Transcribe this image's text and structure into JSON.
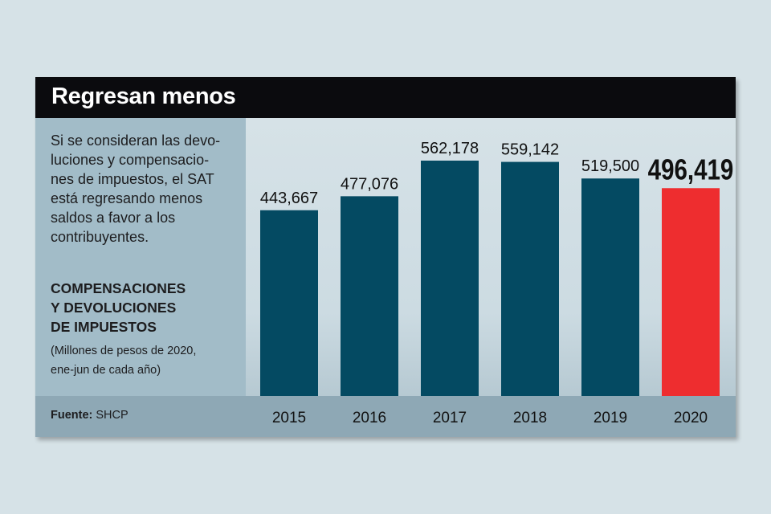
{
  "title": "Regresan menos",
  "description_lines": [
    "Si se consideran las devo-",
    "luciones y compensacio-",
    "nes de impuestos, el SAT",
    "está regresando menos",
    "saldos a favor a los",
    "contribuyentes."
  ],
  "measure_title_lines": [
    "COMPENSACIONES",
    "Y DEVOLUCIONES",
    "DE IMPUESTOS"
  ],
  "measure_note_lines": [
    "(Millones de pesos de 2020,",
    "ene-jun de cada año)"
  ],
  "source": {
    "label": "Fuente:",
    "value": "SHCP"
  },
  "colors": {
    "bar": "#044a62",
    "highlight": "#ee2d2f",
    "label": "#111111"
  },
  "chart_data": {
    "type": "bar",
    "title": "COMPENSACIONES Y DEVOLUCIONES DE IMPUESTOS",
    "ylabel": "Millones de pesos de 2020, ene-jun de cada año",
    "xlabel": "",
    "categories": [
      "2015",
      "2016",
      "2017",
      "2018",
      "2019",
      "2020"
    ],
    "values": [
      443667,
      477076,
      562178,
      559142,
      519500,
      496419
    ],
    "value_labels": [
      "443,667",
      "477,076",
      "562,178",
      "559,142",
      "519,500",
      "496,419"
    ],
    "highlight_index": 5,
    "ylim": [
      0,
      600000
    ],
    "grid": false,
    "legend": "none"
  }
}
